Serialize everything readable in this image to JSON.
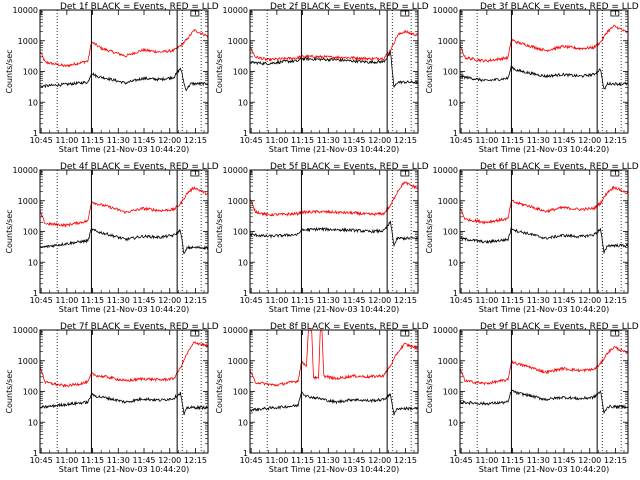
{
  "chart_data": {
    "type": "line",
    "y_scale": "log",
    "ylim": [
      1,
      10000
    ],
    "y_ticks": [
      1,
      10,
      100,
      1000,
      10000
    ],
    "y_tick_labels": [
      "1",
      "10",
      "100",
      "1000",
      "10000"
    ],
    "x_tick_labels": [
      "10:45",
      "11:00",
      "11:15",
      "11:30",
      "11:45",
      "12:00",
      "12:15"
    ],
    "xlabel": "Start Time (21-Nov-03 10:44:20)",
    "ylabel": "Counts/sec",
    "x_range_minutes": [
      0,
      98
    ],
    "colors": {
      "events": "#000000",
      "lld": "#ff0000"
    },
    "panels": [
      {
        "title": "Det 1f BLACK = Events, RED = LLD",
        "events": [
          [
            0,
            33
          ],
          [
            15,
            38
          ],
          [
            28,
            45
          ],
          [
            30,
            90
          ],
          [
            33,
            70
          ],
          [
            36,
            65
          ],
          [
            40,
            58
          ],
          [
            50,
            42
          ],
          [
            60,
            60
          ],
          [
            70,
            55
          ],
          [
            78,
            65
          ],
          [
            80,
            90
          ],
          [
            82,
            130
          ],
          [
            85,
            25
          ],
          [
            88,
            40
          ]
        ],
        "lld": [
          [
            0,
            450
          ],
          [
            3,
            200
          ],
          [
            15,
            150
          ],
          [
            28,
            220
          ],
          [
            30,
            900
          ],
          [
            33,
            720
          ],
          [
            36,
            560
          ],
          [
            40,
            480
          ],
          [
            50,
            320
          ],
          [
            60,
            500
          ],
          [
            70,
            430
          ],
          [
            78,
            480
          ],
          [
            82,
            700
          ],
          [
            85,
            1000
          ],
          [
            90,
            2200
          ],
          [
            98,
            1400
          ]
        ]
      },
      {
        "title": "Det 2f BLACK = Events, RED = LLD",
        "events": [
          [
            0,
            200
          ],
          [
            10,
            180
          ],
          [
            20,
            210
          ],
          [
            28,
            220
          ],
          [
            30,
            260
          ],
          [
            40,
            250
          ],
          [
            50,
            240
          ],
          [
            60,
            220
          ],
          [
            70,
            200
          ],
          [
            78,
            210
          ],
          [
            82,
            400
          ],
          [
            84,
            30
          ],
          [
            86,
            45
          ]
        ],
        "lld": [
          [
            0,
            650
          ],
          [
            3,
            300
          ],
          [
            10,
            240
          ],
          [
            20,
            260
          ],
          [
            28,
            280
          ],
          [
            30,
            310
          ],
          [
            40,
            300
          ],
          [
            50,
            290
          ],
          [
            60,
            280
          ],
          [
            70,
            260
          ],
          [
            78,
            270
          ],
          [
            82,
            500
          ],
          [
            86,
            1500
          ],
          [
            90,
            2000
          ],
          [
            98,
            1500
          ]
        ]
      },
      {
        "title": "Det 3f BLACK = Events, RED = LLD",
        "events": [
          [
            0,
            70
          ],
          [
            15,
            50
          ],
          [
            28,
            60
          ],
          [
            30,
            140
          ],
          [
            33,
            110
          ],
          [
            40,
            90
          ],
          [
            50,
            70
          ],
          [
            60,
            80
          ],
          [
            70,
            70
          ],
          [
            78,
            80
          ],
          [
            82,
            120
          ],
          [
            84,
            25
          ],
          [
            86,
            40
          ]
        ],
        "lld": [
          [
            0,
            700
          ],
          [
            3,
            280
          ],
          [
            15,
            220
          ],
          [
            28,
            280
          ],
          [
            30,
            1100
          ],
          [
            33,
            900
          ],
          [
            40,
            700
          ],
          [
            50,
            480
          ],
          [
            60,
            650
          ],
          [
            70,
            560
          ],
          [
            78,
            600
          ],
          [
            82,
            900
          ],
          [
            86,
            2000
          ],
          [
            90,
            3000
          ],
          [
            98,
            1800
          ]
        ]
      },
      {
        "title": "Det 4f BLACK = Events, RED = LLD",
        "events": [
          [
            0,
            30
          ],
          [
            15,
            40
          ],
          [
            28,
            50
          ],
          [
            30,
            120
          ],
          [
            33,
            100
          ],
          [
            40,
            80
          ],
          [
            50,
            55
          ],
          [
            60,
            70
          ],
          [
            70,
            65
          ],
          [
            78,
            75
          ],
          [
            82,
            110
          ],
          [
            84,
            18
          ],
          [
            86,
            30
          ]
        ],
        "lld": [
          [
            0,
            450
          ],
          [
            3,
            180
          ],
          [
            15,
            160
          ],
          [
            28,
            220
          ],
          [
            30,
            950
          ],
          [
            33,
            800
          ],
          [
            40,
            640
          ],
          [
            50,
            420
          ],
          [
            60,
            560
          ],
          [
            70,
            480
          ],
          [
            78,
            520
          ],
          [
            82,
            800
          ],
          [
            86,
            1800
          ],
          [
            90,
            2700
          ],
          [
            98,
            1600
          ]
        ]
      },
      {
        "title": "Det 5f BLACK = Events, RED = LLD",
        "events": [
          [
            0,
            80
          ],
          [
            10,
            70
          ],
          [
            20,
            75
          ],
          [
            28,
            80
          ],
          [
            30,
            110
          ],
          [
            40,
            120
          ],
          [
            50,
            115
          ],
          [
            60,
            110
          ],
          [
            70,
            100
          ],
          [
            78,
            105
          ],
          [
            82,
            200
          ],
          [
            84,
            35
          ],
          [
            86,
            60
          ]
        ],
        "lld": [
          [
            0,
            1200
          ],
          [
            3,
            450
          ],
          [
            10,
            350
          ],
          [
            20,
            360
          ],
          [
            28,
            380
          ],
          [
            30,
            420
          ],
          [
            40,
            440
          ],
          [
            50,
            420
          ],
          [
            60,
            400
          ],
          [
            70,
            360
          ],
          [
            78,
            380
          ],
          [
            82,
            700
          ],
          [
            86,
            2000
          ],
          [
            90,
            4000
          ],
          [
            98,
            2500
          ]
        ]
      },
      {
        "title": "Det 6f BLACK = Events, RED = LLD",
        "events": [
          [
            0,
            60
          ],
          [
            15,
            45
          ],
          [
            28,
            55
          ],
          [
            30,
            130
          ],
          [
            33,
            105
          ],
          [
            40,
            85
          ],
          [
            50,
            60
          ],
          [
            60,
            75
          ],
          [
            70,
            68
          ],
          [
            78,
            78
          ],
          [
            82,
            120
          ],
          [
            84,
            20
          ],
          [
            86,
            35
          ]
        ],
        "lld": [
          [
            0,
            600
          ],
          [
            3,
            250
          ],
          [
            15,
            200
          ],
          [
            28,
            260
          ],
          [
            30,
            1000
          ],
          [
            33,
            850
          ],
          [
            40,
            680
          ],
          [
            50,
            450
          ],
          [
            60,
            600
          ],
          [
            70,
            520
          ],
          [
            78,
            560
          ],
          [
            82,
            850
          ],
          [
            86,
            1900
          ],
          [
            90,
            2800
          ],
          [
            98,
            1700
          ]
        ]
      },
      {
        "title": "Det 7f BLACK = Events, RED = LLD",
        "events": [
          [
            0,
            30
          ],
          [
            15,
            38
          ],
          [
            28,
            45
          ],
          [
            30,
            80
          ],
          [
            33,
            70
          ],
          [
            40,
            60
          ],
          [
            50,
            45
          ],
          [
            60,
            58
          ],
          [
            70,
            52
          ],
          [
            78,
            60
          ],
          [
            82,
            90
          ],
          [
            84,
            18
          ],
          [
            86,
            30
          ]
        ],
        "lld": [
          [
            0,
            700
          ],
          [
            3,
            200
          ],
          [
            15,
            150
          ],
          [
            28,
            200
          ],
          [
            30,
            380
          ],
          [
            33,
            330
          ],
          [
            40,
            290
          ],
          [
            50,
            220
          ],
          [
            60,
            260
          ],
          [
            70,
            240
          ],
          [
            78,
            260
          ],
          [
            82,
            600
          ],
          [
            86,
            1800
          ],
          [
            90,
            4000
          ],
          [
            98,
            3000
          ]
        ]
      },
      {
        "title": "Det 8f BLACK = Events, RED = LLD",
        "events": [
          [
            0,
            25
          ],
          [
            15,
            30
          ],
          [
            28,
            35
          ],
          [
            30,
            100
          ],
          [
            33,
            70
          ],
          [
            40,
            60
          ],
          [
            50,
            45
          ],
          [
            60,
            55
          ],
          [
            70,
            50
          ],
          [
            78,
            55
          ],
          [
            82,
            80
          ],
          [
            84,
            18
          ],
          [
            86,
            28
          ]
        ],
        "lld": [
          [
            0,
            500
          ],
          [
            3,
            200
          ],
          [
            15,
            160
          ],
          [
            28,
            220
          ],
          [
            30,
            900
          ],
          [
            33,
            700
          ],
          [
            34,
            10000
          ],
          [
            36,
            10000
          ],
          [
            37,
            300
          ],
          [
            40,
            260
          ],
          [
            41,
            10000
          ],
          [
            42,
            10000
          ],
          [
            43,
            320
          ],
          [
            50,
            260
          ],
          [
            60,
            320
          ],
          [
            70,
            300
          ],
          [
            78,
            330
          ],
          [
            82,
            700
          ],
          [
            86,
            1800
          ],
          [
            90,
            3500
          ],
          [
            98,
            2500
          ]
        ]
      },
      {
        "title": "Det 9f BLACK = Events, RED = LLD",
        "events": [
          [
            0,
            45
          ],
          [
            15,
            40
          ],
          [
            28,
            45
          ],
          [
            30,
            110
          ],
          [
            33,
            90
          ],
          [
            40,
            75
          ],
          [
            50,
            55
          ],
          [
            60,
            65
          ],
          [
            70,
            58
          ],
          [
            78,
            65
          ],
          [
            82,
            100
          ],
          [
            84,
            20
          ],
          [
            86,
            32
          ]
        ],
        "lld": [
          [
            0,
            550
          ],
          [
            3,
            220
          ],
          [
            15,
            180
          ],
          [
            28,
            240
          ],
          [
            30,
            950
          ],
          [
            33,
            800
          ],
          [
            40,
            640
          ],
          [
            50,
            420
          ],
          [
            60,
            560
          ],
          [
            70,
            480
          ],
          [
            78,
            520
          ],
          [
            82,
            800
          ],
          [
            86,
            1800
          ],
          [
            90,
            2800
          ],
          [
            98,
            1700
          ]
        ]
      }
    ]
  }
}
